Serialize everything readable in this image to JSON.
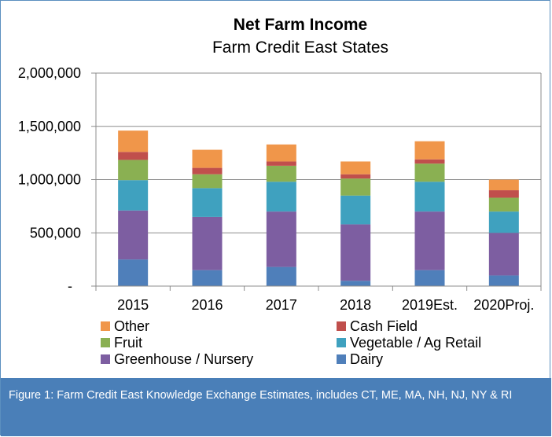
{
  "chart_data": {
    "type": "bar",
    "stacked": true,
    "title": "Net Farm Income",
    "subtitle": "Farm Credit East States",
    "categories": [
      "2015",
      "2016",
      "2017",
      "2018",
      "2019Est.",
      "2020Proj."
    ],
    "ylim": [
      0,
      2000000
    ],
    "yticks": [
      "-",
      "500,000",
      "1,000,000",
      "1,500,000",
      "2,000,000"
    ],
    "grid": true,
    "legend_position": "bottom",
    "series": [
      {
        "name": "Dairy",
        "color": "#4f7fba",
        "values": [
          250000,
          150000,
          180000,
          50000,
          150000,
          100000
        ]
      },
      {
        "name": "Greenhouse / Nursery",
        "color": "#7d5ea1",
        "values": [
          460000,
          500000,
          520000,
          530000,
          550000,
          400000
        ]
      },
      {
        "name": "Vegetable / Ag Retail",
        "color": "#3fa1bf",
        "values": [
          285000,
          270000,
          280000,
          270000,
          280000,
          200000
        ]
      },
      {
        "name": "Fruit",
        "color": "#8ab052",
        "values": [
          190000,
          130000,
          150000,
          160000,
          170000,
          130000
        ]
      },
      {
        "name": "Cash Field",
        "color": "#c04f4c",
        "values": [
          75000,
          60000,
          40000,
          40000,
          40000,
          70000
        ]
      },
      {
        "name": "Other",
        "color": "#f0964a",
        "values": [
          200000,
          170000,
          160000,
          120000,
          170000,
          100000
        ]
      }
    ]
  },
  "legend_order": [
    "Other",
    "Cash Field",
    "Fruit",
    "Vegetable / Ag Retail",
    "Greenhouse / Nursery",
    "Dairy"
  ],
  "caption": "Figure 1: Farm Credit East Knowledge Exchange Estimates, includes CT, ME, MA, NH, NJ, NY & RI"
}
